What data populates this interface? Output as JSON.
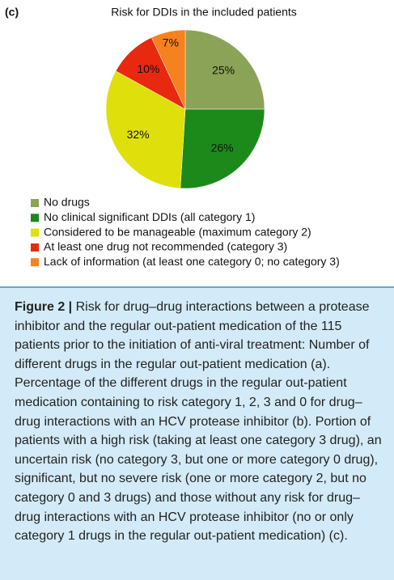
{
  "panel_label": "(c)",
  "chart_data": {
    "type": "pie",
    "title": "Risk for DDIs in the included patients",
    "categories": [
      "No drugs",
      "No clinical significant DDIs (all category 1)",
      "Considered to be manageable (maximum category 2)",
      "At least one drug not recommended (category 3)",
      "Lack of information (at least one category 0; no category 3)"
    ],
    "values": [
      25,
      26,
      32,
      10,
      7
    ],
    "value_labels": [
      "25%",
      "26%",
      "32%",
      "10%",
      "7%"
    ],
    "colors": [
      "#8ba356",
      "#1b8a1b",
      "#dfdf0b",
      "#e8290f",
      "#f5821f"
    ],
    "legend": "bottom-left"
  },
  "caption": {
    "label": "Figure 2 |",
    "text": "Risk for drug–drug interactions between a protease inhibitor and the regular out-patient medication of the 115 patients prior to the initiation of anti-viral treatment: Number of different drugs in the regular out-patient medication (a). Percentage of the different drugs in the regular out-patient medication containing to risk category 1, 2, 3 and 0 for drug–drug interactions with an HCV protease inhibitor (b). Portion of patients with a high risk (taking at least one category 3 drug), an uncertain risk (no category 3, but one or more category 0 drug), significant, but no severe risk (one or more category 2, but no category 0 and 3 drugs) and those without any risk for drug–drug interactions with an HCV protease inhibitor (no or only category 1 drugs in the regular out-patient medication) (c)."
  }
}
